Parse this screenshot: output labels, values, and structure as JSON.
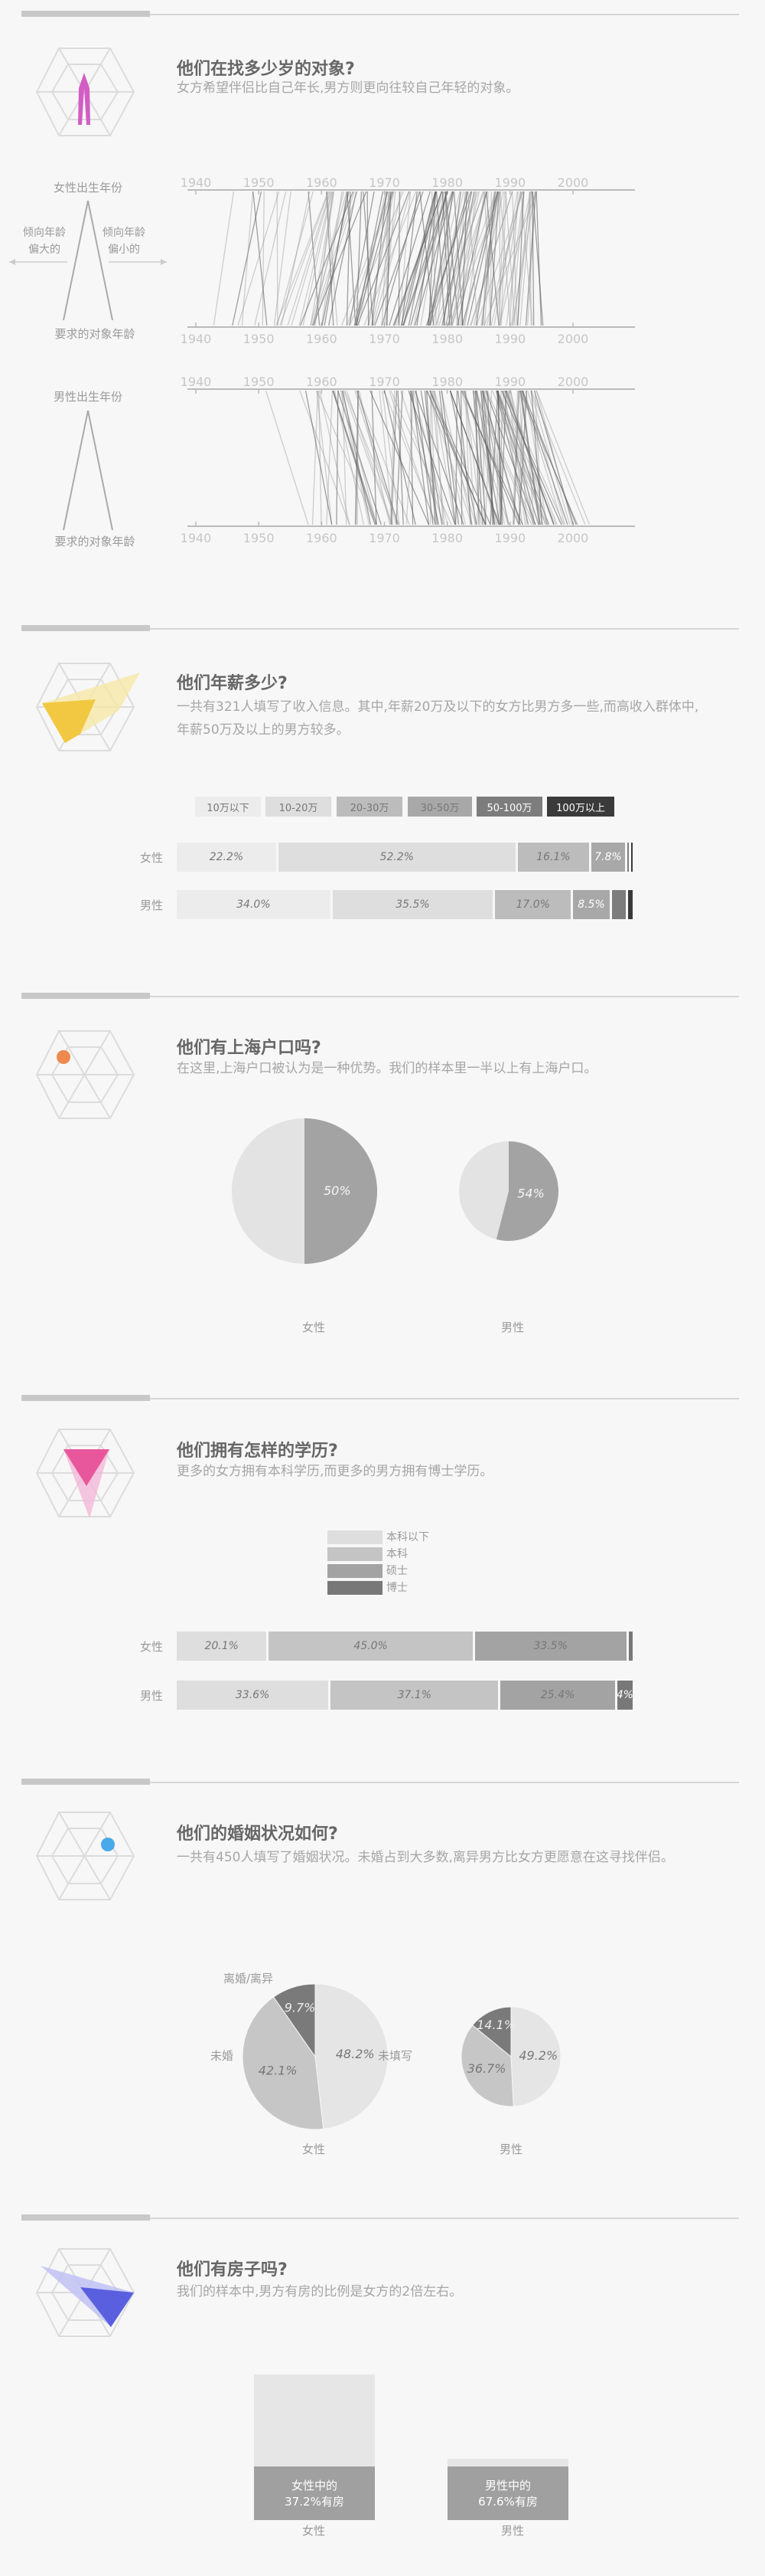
{
  "age": {
    "title": "他们在找多少岁的对象?",
    "subtitle": "女方希望伴侣比自己年长,男方则更向往较自己年轻的对象。",
    "women_birth_label": "女性出生年份",
    "men_birth_label": "男性出生年份",
    "target_age_label_w": "要求的对象年龄",
    "target_age_label_m": "要求的对象年龄",
    "older_label": "倾向年龄\n偏大的",
    "younger_label": "倾向年龄\n偏小的",
    "year_ticks": [
      "1940",
      "1950",
      "1960",
      "1970",
      "1980",
      "1990",
      "2000"
    ]
  },
  "income": {
    "title": "他们年薪多少?",
    "subtitle": "一共有321人填写了收入信息。其中,年薪20万及以下的女方比男方多一些,而高收入群体中,年薪50万及以上的男方较多。",
    "legend": [
      "10万以下",
      "10-20万",
      "20-30万",
      "30-50万",
      "50-100万",
      "100万以上"
    ],
    "legend_colors": [
      "#ececec",
      "#dedede",
      "#bcbcbc",
      "#a8a8a8",
      "#7d7d7d",
      "#3a3a3a"
    ],
    "rows": [
      {
        "label": "女性",
        "values": [
          22.2,
          52.2,
          16.1,
          7.8,
          0.9,
          0.8
        ],
        "texts": [
          "22.2%",
          "52.2%",
          "16.1%",
          "7.8%",
          "",
          ""
        ]
      },
      {
        "label": "男性",
        "values": [
          34.0,
          35.5,
          17.0,
          8.5,
          3.5,
          1.5
        ],
        "texts": [
          "34.0%",
          "35.5%",
          "17.0%",
          "8.5%",
          "",
          ""
        ]
      }
    ]
  },
  "hukou": {
    "title": "他们有上海户口吗?",
    "subtitle": "在这里,上海户口被认为是一种优势。我们的样本里一半以上有上海户口。",
    "women": {
      "label": "女性",
      "value": 50,
      "text": "50%"
    },
    "men": {
      "label": "男性",
      "value": 54,
      "text": "54%"
    }
  },
  "education": {
    "title": "他们拥有怎样的学历?",
    "subtitle": "更多的女方拥有本科学历,而更多的男方拥有博士学历。",
    "legend": [
      "本科以下",
      "本科",
      "硕士",
      "博士"
    ],
    "colors": [
      "#dedede",
      "#c4c4c4",
      "#a3a3a3",
      "#787878"
    ],
    "rows": [
      {
        "label": "女性",
        "values": [
          20.1,
          45.0,
          33.5,
          1.4
        ],
        "texts": [
          "20.1%",
          "45.0%",
          "33.5%",
          ""
        ]
      },
      {
        "label": "男性",
        "values": [
          33.6,
          37.1,
          25.4,
          3.9
        ],
        "texts": [
          "33.6%",
          "37.1%",
          "25.4%",
          "4%"
        ]
      }
    ]
  },
  "marriage": {
    "title": "他们的婚姻状况如何?",
    "subtitle": "一共有450人填写了婚姻状况。未婚占到大多数,离异男方比女方更愿意在这寻找伴侣。",
    "women": {
      "label": "女性",
      "slices": [
        48.2,
        42.1,
        9.7
      ],
      "texts": [
        "48.2%",
        "42.1%",
        "9.7%"
      ]
    },
    "men": {
      "label": "男性",
      "slices": [
        49.2,
        36.7,
        14.1
      ],
      "texts": [
        "49.2%",
        "36.7%",
        "14.1%"
      ]
    },
    "cat_unfilled": "未填写",
    "cat_single": "未婚",
    "cat_divorced": "离婚/离异",
    "slice_colors": [
      "#e5e5e5",
      "#c6c6c6",
      "#7a7a7a"
    ]
  },
  "house": {
    "title": "他们有房子吗?",
    "subtitle": "我们的样本中,男方有房的比例是女方的2倍左右。",
    "women": {
      "label": "女性",
      "value": 37.2,
      "text1": "女性中的",
      "text2": "37.2%有房"
    },
    "men": {
      "label": "男性",
      "value": 67.6,
      "text1": "男性中的",
      "text2": "67.6%有房"
    }
  }
}
